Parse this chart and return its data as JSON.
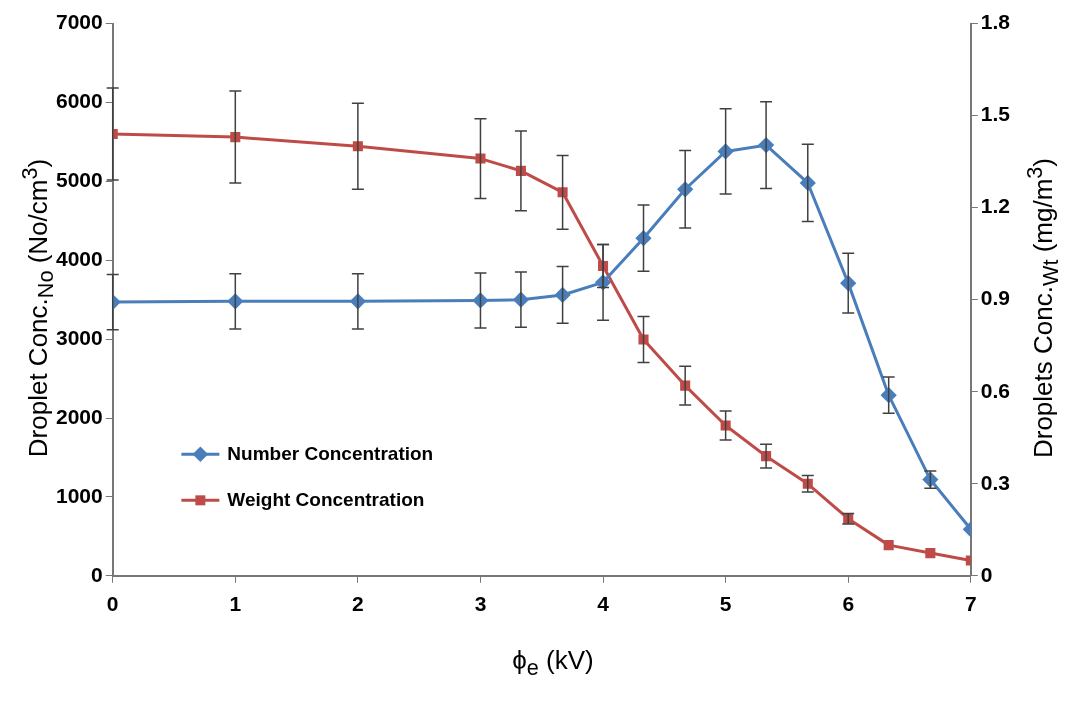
{
  "chart_data": {
    "type": "line",
    "xlabel": "ϕ$_{e}$ (kV)",
    "ylabel": "Droplet Conc.$_{No}$ (No/cm$^{3}$)",
    "y2label": "Droplets Conc.$_{Wt}$ (mg/m$^{3}$)",
    "x": [
      0,
      1,
      2,
      3,
      3.33,
      3.67,
      4,
      4.33,
      4.67,
      5,
      5.33,
      5.67,
      6,
      6.33,
      6.67,
      7
    ],
    "xlim": [
      0,
      7
    ],
    "xticks": [
      0,
      1,
      2,
      3,
      4,
      5,
      6,
      7
    ],
    "ylim": [
      0,
      7000
    ],
    "yticks": [
      0,
      1000,
      2000,
      3000,
      4000,
      5000,
      6000,
      7000
    ],
    "y2lim": [
      0,
      1.8
    ],
    "y2ticks": [
      0,
      0.3,
      0.6,
      0.9,
      1.2,
      1.5,
      1.8
    ],
    "grid": false,
    "legend": "bottom left",
    "series": [
      {
        "name": "Number Concentration",
        "color": "#4a7ebb",
        "marker": "diamond",
        "values": [
          3470,
          3480,
          3480,
          3490,
          3500,
          3560,
          3720,
          4280,
          4900,
          5380,
          5460,
          4980,
          3710,
          2290,
          1220,
          590
        ],
        "errors": [
          350,
          350,
          350,
          350,
          350,
          360,
          480,
          420,
          490,
          540,
          550,
          490,
          380,
          230,
          110,
          null
        ]
      },
      {
        "name": "Weight Concentration",
        "color": "#be4b48",
        "marker": "square",
        "axis": "y2",
        "values": [
          1.44,
          1.43,
          1.4,
          1.36,
          1.32,
          1.25,
          1.01,
          0.77,
          0.62,
          0.49,
          0.39,
          0.3,
          0.186,
          0.1,
          0.074,
          0.05
        ],
        "errors": [
          0.15,
          0.15,
          0.14,
          0.13,
          0.13,
          0.12,
          0.07,
          0.075,
          0.063,
          0.047,
          0.039,
          0.027,
          0.017,
          null,
          null,
          null
        ]
      }
    ]
  }
}
